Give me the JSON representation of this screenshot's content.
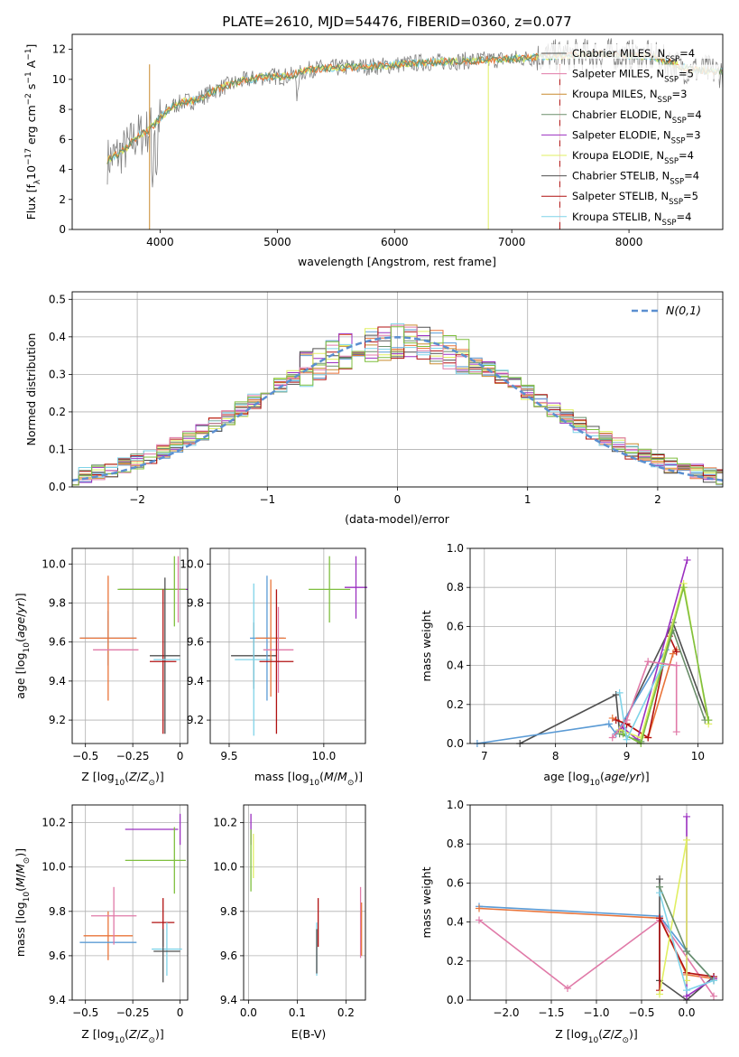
{
  "colors": [
    "#5b9bd5",
    "#e9743a",
    "#c98a2e",
    "#6b8f6b",
    "#9b30c0",
    "#e0ef62",
    "#505050",
    "#b01010",
    "#7fd3e8",
    "#e07aa8",
    "#7fbf3f"
  ],
  "chart_data": [
    {
      "id": "spectrum",
      "type": "line",
      "title": "PLATE=2610, MJD=54476, FIBERID=0360, z=0.077",
      "xlabel": "wavelength [Angstrom, rest frame]",
      "ylabel": "Flux [f",
      "xlim": [
        3250,
        8800
      ],
      "ylim": [
        0,
        13
      ],
      "xticks": [
        4000,
        5000,
        6000,
        7000,
        8000
      ],
      "yticks": [
        0,
        2,
        4,
        6,
        8,
        10,
        12
      ],
      "grid": false,
      "legend_placement": "right",
      "continuum": [
        [
          3550,
          4.6
        ],
        [
          3700,
          5.3
        ],
        [
          3800,
          6.2
        ],
        [
          3900,
          6.6
        ],
        [
          4000,
          7.4
        ],
        [
          4100,
          8.2
        ],
        [
          4200,
          8.5
        ],
        [
          4300,
          8.6
        ],
        [
          4500,
          9.4
        ],
        [
          4700,
          9.9
        ],
        [
          4900,
          10.2
        ],
        [
          5100,
          10.2
        ],
        [
          5300,
          10.7
        ],
        [
          5600,
          10.8
        ],
        [
          5900,
          10.9
        ],
        [
          6200,
          11.1
        ],
        [
          6500,
          11.2
        ],
        [
          6800,
          11.3
        ],
        [
          7100,
          11.4
        ],
        [
          7400,
          11.6
        ],
        [
          7800,
          11.7
        ],
        [
          8200,
          11.5
        ],
        [
          8500,
          10.7
        ],
        [
          8800,
          10.5
        ]
      ],
      "legend": [
        {
          "pre": "Chabrier MILES, N",
          "post": "=4",
          "color": "#505050"
        },
        {
          "pre": "Salpeter MILES, N",
          "post": "=5",
          "color": "#e07aa8"
        },
        {
          "pre": "Kroupa MILES, N",
          "post": "=3",
          "color": "#c98a2e"
        },
        {
          "pre": "Chabrier ELODIE, N",
          "post": "=4",
          "color": "#6b8f6b"
        },
        {
          "pre": "Salpeter ELODIE, N",
          "post": "=3",
          "color": "#9b30c0"
        },
        {
          "pre": "Kroupa ELODIE, N",
          "post": "=4",
          "color": "#e0ef62"
        },
        {
          "pre": "Chabrier STELIB, N",
          "post": "=4",
          "color": "#505050"
        },
        {
          "pre": "Salpeter STELIB, N",
          "post": "=5",
          "color": "#b01010"
        },
        {
          "pre": "Kroupa STELIB, N",
          "post": "=4",
          "color": "#7fd3e8"
        }
      ]
    },
    {
      "id": "residuals",
      "type": "line",
      "xlabel": "(data-model)/error",
      "ylabel": "Normed distribution",
      "xlim": [
        -2.5,
        2.5
      ],
      "ylim": [
        0,
        0.52
      ],
      "xticks": [
        -2,
        -1,
        0,
        1,
        2
      ],
      "yticks": [
        0.0,
        0.1,
        0.2,
        0.3,
        0.4,
        0.5
      ],
      "grid": true,
      "legend_placement": "top-right",
      "legend": "N(0,1)"
    },
    {
      "id": "age_vs_Z",
      "type": "scatter",
      "xlabel": "Z [log",
      "ylabel": "age  [log",
      "xlim": [
        -0.57,
        0.04
      ],
      "ylim": [
        9.08,
        10.08
      ],
      "xticks": [
        -0.5,
        -0.25,
        0.0
      ],
      "yticks": [
        9.2,
        9.4,
        9.6,
        9.8,
        10.0
      ],
      "grid": true,
      "points": [
        {
          "x": -0.38,
          "y": 9.62,
          "xerr": 0.15,
          "yerr": 0.14,
          "color": "#5b9bd5"
        },
        {
          "x": -0.38,
          "y": 9.62,
          "xerr": 0.15,
          "yerr": 0.32,
          "color": "#e9743a"
        },
        {
          "x": -0.34,
          "y": 9.56,
          "xerr": 0.12,
          "yerr": 0.0,
          "color": "#e07aa8"
        },
        {
          "x": -0.14,
          "y": 9.87,
          "xerr": 0.18,
          "yerr": 0.0,
          "color": "#9b30c0"
        },
        {
          "x": -0.15,
          "y": 9.87,
          "xerr": 0.18,
          "yerr": 0.0,
          "color": "#7fbf3f"
        },
        {
          "x": -0.03,
          "y": 9.86,
          "xerr": 0.0,
          "yerr": 0.18,
          "color": "#7fbf3f"
        },
        {
          "x": -0.01,
          "y": 9.87,
          "xerr": 0.0,
          "yerr": 0.17,
          "color": "#e07aa8"
        },
        {
          "x": -0.08,
          "y": 9.53,
          "xerr": 0.08,
          "yerr": 0.4,
          "color": "#505050"
        },
        {
          "x": -0.09,
          "y": 9.5,
          "xerr": 0.07,
          "yerr": 0.37,
          "color": "#b01010"
        },
        {
          "x": -0.07,
          "y": 9.51,
          "xerr": 0.07,
          "yerr": 0.0,
          "color": "#7fd3e8"
        }
      ]
    },
    {
      "id": "age_vs_mass",
      "type": "scatter",
      "xlabel": "mass [log",
      "xlim": [
        9.4,
        10.22
      ],
      "ylim": [
        9.08,
        10.08
      ],
      "xticks": [
        9.5,
        10.0
      ],
      "yticks": [
        9.2,
        9.4,
        9.6,
        9.8,
        10.0
      ],
      "grid": true,
      "points": [
        {
          "x": 9.63,
          "y": 9.53,
          "xerr": 0.12,
          "yerr": 0.17,
          "color": "#505050"
        },
        {
          "x": 9.63,
          "y": 9.51,
          "xerr": 0.1,
          "yerr": 0.39,
          "color": "#7fd3e8"
        },
        {
          "x": 9.7,
          "y": 9.62,
          "xerr": 0.09,
          "yerr": 0.32,
          "color": "#5b9bd5"
        },
        {
          "x": 9.72,
          "y": 9.62,
          "xerr": 0.08,
          "yerr": 0.3,
          "color": "#e9743a"
        },
        {
          "x": 9.76,
          "y": 9.56,
          "xerr": 0.08,
          "yerr": 0.22,
          "color": "#e07aa8"
        },
        {
          "x": 9.75,
          "y": 9.5,
          "xerr": 0.09,
          "yerr": 0.37,
          "color": "#b01010"
        },
        {
          "x": 10.03,
          "y": 9.87,
          "xerr": 0.11,
          "yerr": 0.17,
          "color": "#7fbf3f"
        },
        {
          "x": 10.17,
          "y": 9.88,
          "xerr": 0.06,
          "yerr": 0.16,
          "color": "#9b30c0"
        }
      ]
    },
    {
      "id": "mass_weight_vs_age",
      "type": "line",
      "xlabel": "age  [log",
      "ylabel": "mass weight",
      "xlim": [
        6.8,
        10.35
      ],
      "ylim": [
        0,
        1
      ],
      "xticks": [
        7,
        8,
        9,
        10
      ],
      "yticks": [
        0.0,
        0.2,
        0.4,
        0.6,
        0.8,
        1.0
      ],
      "grid": true,
      "series": [
        {
          "color": "#505050",
          "points": [
            [
              7.5,
              0.0
            ],
            [
              8.85,
              0.25
            ],
            [
              8.9,
              0.06
            ],
            [
              9.65,
              0.62
            ],
            [
              10.15,
              0.12
            ]
          ]
        },
        {
          "color": "#5b9bd5",
          "points": [
            [
              6.9,
              0.0
            ],
            [
              8.75,
              0.1
            ],
            [
              8.85,
              0.05
            ],
            [
              9.55,
              0.48
            ]
          ]
        },
        {
          "color": "#e9743a",
          "points": [
            [
              8.8,
              0.13
            ],
            [
              9.0,
              0.1
            ],
            [
              9.3,
              0.03
            ],
            [
              9.65,
              0.46
            ],
            [
              9.7,
              0.48
            ]
          ]
        },
        {
          "color": "#b01010",
          "points": [
            [
              8.85,
              0.12
            ],
            [
              9.0,
              0.1
            ],
            [
              9.3,
              0.03
            ],
            [
              9.6,
              0.55
            ],
            [
              9.7,
              0.47
            ]
          ]
        },
        {
          "color": "#9b30c0",
          "points": [
            [
              8.95,
              0.08
            ],
            [
              9.15,
              0.02
            ],
            [
              9.85,
              0.94
            ]
          ]
        },
        {
          "color": "#6b8f6b",
          "points": [
            [
              8.9,
              0.05
            ],
            [
              9.2,
              0.01
            ],
            [
              9.65,
              0.58
            ],
            [
              10.1,
              0.12
            ]
          ]
        },
        {
          "color": "#e0ef62",
          "points": [
            [
              8.9,
              0.07
            ],
            [
              9.2,
              0.03
            ],
            [
              9.8,
              0.82
            ],
            [
              10.15,
              0.1
            ]
          ]
        },
        {
          "color": "#7fbf3f",
          "points": [
            [
              8.95,
              0.05
            ],
            [
              9.2,
              0.0
            ],
            [
              9.8,
              0.8
            ],
            [
              10.15,
              0.12
            ]
          ]
        },
        {
          "color": "#7fd3e8",
          "points": [
            [
              8.9,
              0.26
            ],
            [
              9.0,
              0.02
            ],
            [
              9.5,
              0.4
            ]
          ]
        },
        {
          "color": "#e07aa8",
          "points": [
            [
              8.8,
              0.03
            ],
            [
              9.0,
              0.12
            ],
            [
              9.3,
              0.42
            ],
            [
              9.7,
              0.4
            ],
            [
              9.7,
              0.06
            ]
          ]
        }
      ]
    },
    {
      "id": "mass_vs_Z",
      "type": "scatter",
      "xlabel": "Z [log",
      "ylabel": "mass [log",
      "xlim": [
        -0.57,
        0.04
      ],
      "ylim": [
        9.4,
        10.28
      ],
      "xticks": [
        -0.5,
        -0.25,
        0.0
      ],
      "yticks": [
        9.4,
        9.6,
        9.8,
        10.0,
        10.2
      ],
      "grid": true,
      "points": [
        {
          "x": -0.38,
          "y": 9.69,
          "xerr": 0.13,
          "yerr": 0.11,
          "color": "#e9743a"
        },
        {
          "x": -0.38,
          "y": 9.66,
          "xerr": 0.15,
          "yerr": 0.0,
          "color": "#5b9bd5"
        },
        {
          "x": -0.35,
          "y": 9.78,
          "xerr": 0.12,
          "yerr": 0.13,
          "color": "#e07aa8"
        },
        {
          "x": -0.15,
          "y": 10.17,
          "xerr": 0.14,
          "yerr": 0.0,
          "color": "#9b30c0"
        },
        {
          "x": -0.13,
          "y": 10.03,
          "xerr": 0.16,
          "yerr": 0.0,
          "color": "#7fbf3f"
        },
        {
          "x": -0.03,
          "y": 10.03,
          "xerr": 0.0,
          "yerr": 0.15,
          "color": "#7fbf3f"
        },
        {
          "x": 0.0,
          "y": 10.17,
          "xerr": 0.0,
          "yerr": 0.07,
          "color": "#9b30c0"
        },
        {
          "x": -0.09,
          "y": 9.75,
          "xerr": 0.06,
          "yerr": 0.11,
          "color": "#b01010"
        },
        {
          "x": -0.07,
          "y": 9.63,
          "xerr": 0.08,
          "yerr": 0.12,
          "color": "#7fd3e8"
        },
        {
          "x": -0.07,
          "y": 9.62,
          "xerr": 0.07,
          "yerr": 0.0,
          "color": "#505050"
        },
        {
          "x": -0.09,
          "y": 9.6,
          "xerr": 0.0,
          "yerr": 0.12,
          "color": "#505050"
        }
      ]
    },
    {
      "id": "mass_vs_ebv",
      "type": "scatter",
      "xlabel": "E(B-V)",
      "xlim": [
        -0.01,
        0.24
      ],
      "ylim": [
        9.4,
        10.28
      ],
      "xticks": [
        0.0,
        0.1,
        0.2
      ],
      "yticks": [
        9.4,
        9.6,
        9.8,
        10.0,
        10.2
      ],
      "grid": true,
      "points": [
        {
          "x": 0.005,
          "y": 10.17,
          "xerr": 0.0,
          "yerr": 0.07,
          "color": "#9b30c0"
        },
        {
          "x": 0.005,
          "y": 10.03,
          "xerr": 0.0,
          "yerr": 0.14,
          "color": "#7fbf3f"
        },
        {
          "x": 0.01,
          "y": 10.05,
          "xerr": 0.0,
          "yerr": 0.1,
          "color": "#e0ef62"
        },
        {
          "x": 0.14,
          "y": 9.63,
          "xerr": 0.0,
          "yerr": 0.12,
          "color": "#7fd3e8"
        },
        {
          "x": 0.14,
          "y": 9.62,
          "xerr": 0.0,
          "yerr": 0.1,
          "color": "#505050"
        },
        {
          "x": 0.143,
          "y": 9.75,
          "xerr": 0.0,
          "yerr": 0.11,
          "color": "#b01010"
        },
        {
          "x": 0.23,
          "y": 9.75,
          "xerr": 0.0,
          "yerr": 0.16,
          "color": "#e07aa8"
        },
        {
          "x": 0.232,
          "y": 9.72,
          "xerr": 0.0,
          "yerr": 0.12,
          "color": "#e9743a"
        }
      ]
    },
    {
      "id": "mass_weight_vs_Z",
      "type": "line",
      "xlabel": "Z [log",
      "ylabel": "mass weight",
      "xlim": [
        -2.4,
        0.4
      ],
      "ylim": [
        0,
        1
      ],
      "xticks": [
        -2.0,
        -1.5,
        -1.0,
        -0.5,
        0.0
      ],
      "yticks": [
        0.0,
        0.2,
        0.4,
        0.6,
        0.8,
        1.0
      ],
      "grid": true,
      "series": [
        {
          "color": "#5b9bd5",
          "points": [
            [
              -2.3,
              0.48
            ],
            [
              -0.3,
              0.43
            ],
            [
              0.0,
              0.25
            ],
            [
              0.3,
              0.1
            ]
          ]
        },
        {
          "color": "#e9743a",
          "points": [
            [
              -2.3,
              0.47
            ],
            [
              -0.3,
              0.42
            ],
            [
              0.0,
              0.13
            ],
            [
              0.3,
              0.11
            ]
          ]
        },
        {
          "color": "#e07aa8",
          "points": [
            [
              -2.3,
              0.41
            ],
            [
              -1.32,
              0.06
            ],
            [
              -0.3,
              0.41
            ],
            [
              -0.3,
              0.42
            ],
            [
              0.3,
              0.02
            ]
          ]
        },
        {
          "color": "#505050",
          "points": [
            [
              -0.3,
              0.62
            ],
            [
              -0.3,
              0.1
            ],
            [
              0.0,
              0.0
            ],
            [
              0.3,
              0.12
            ]
          ]
        },
        {
          "color": "#b01010",
          "points": [
            [
              -0.3,
              0.05
            ],
            [
              -0.3,
              0.42
            ],
            [
              0.0,
              0.14
            ],
            [
              0.3,
              0.12
            ]
          ]
        },
        {
          "color": "#9b30c0",
          "points": [
            [
              0.0,
              0.94
            ],
            [
              0.0,
              0.02
            ],
            [
              0.3,
              0.11
            ]
          ]
        },
        {
          "color": "#e0ef62",
          "points": [
            [
              -0.3,
              0.03
            ],
            [
              0.0,
              0.82
            ],
            [
              0.0,
              0.1
            ]
          ]
        },
        {
          "color": "#6b8f6b",
          "points": [
            [
              -0.3,
              0.58
            ],
            [
              0.0,
              0.25
            ],
            [
              0.3,
              0.1
            ]
          ]
        },
        {
          "color": "#7fd3e8",
          "points": [
            [
              -0.3,
              0.55
            ],
            [
              0.0,
              0.05
            ],
            [
              0.3,
              0.1
            ]
          ]
        }
      ]
    }
  ]
}
